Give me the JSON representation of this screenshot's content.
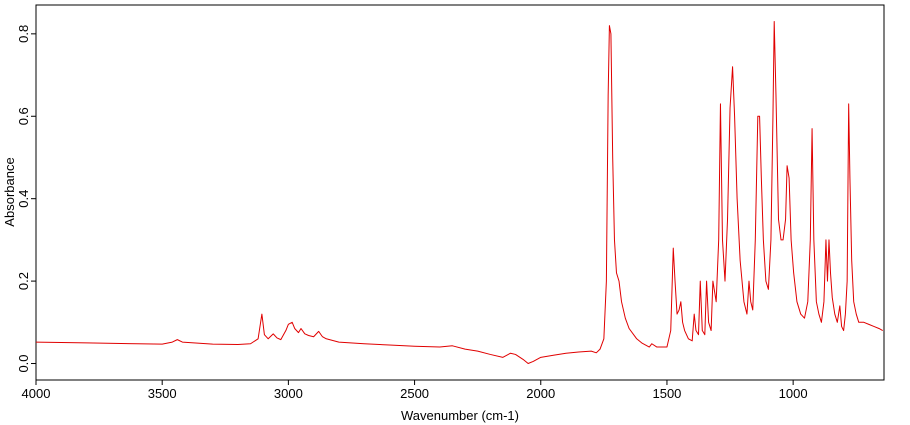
{
  "chart_data": {
    "type": "line",
    "xlabel": "Wavenumber (cm-1)",
    "ylabel": "Absorbance",
    "color": "#e00000",
    "xlim": [
      4000,
      640
    ],
    "xticks": [
      4000,
      3500,
      3000,
      2500,
      2000,
      1500,
      1000
    ],
    "ylim": [
      -0.04,
      0.87
    ],
    "yticks": [
      {
        "value": 0,
        "label": "0.0"
      },
      0.2,
      0.4,
      0.6,
      0.8
    ],
    "x": [
      4000,
      3800,
      3600,
      3500,
      3460,
      3440,
      3420,
      3300,
      3200,
      3150,
      3120,
      3105,
      3095,
      3080,
      3060,
      3045,
      3030,
      3010,
      3000,
      2985,
      2975,
      2960,
      2950,
      2935,
      2920,
      2900,
      2880,
      2865,
      2850,
      2800,
      2700,
      2600,
      2500,
      2400,
      2350,
      2300,
      2250,
      2200,
      2150,
      2120,
      2100,
      2070,
      2050,
      2030,
      2000,
      1950,
      1900,
      1850,
      1800,
      1780,
      1765,
      1750,
      1740,
      1733,
      1728,
      1722,
      1715,
      1708,
      1700,
      1690,
      1680,
      1665,
      1650,
      1620,
      1600,
      1570,
      1560,
      1540,
      1500,
      1485,
      1475,
      1468,
      1460,
      1452,
      1445,
      1438,
      1430,
      1415,
      1400,
      1392,
      1385,
      1375,
      1368,
      1360,
      1350,
      1343,
      1335,
      1325,
      1318,
      1305,
      1295,
      1288,
      1280,
      1270,
      1260,
      1250,
      1240,
      1232,
      1222,
      1210,
      1195,
      1183,
      1175,
      1168,
      1160,
      1150,
      1140,
      1133,
      1126,
      1118,
      1108,
      1098,
      1088,
      1080,
      1075,
      1068,
      1058,
      1048,
      1040,
      1030,
      1024,
      1016,
      1008,
      998,
      985,
      970,
      955,
      942,
      932,
      925,
      918,
      908,
      898,
      888,
      878,
      870,
      864,
      858,
      852,
      845,
      835,
      825,
      815,
      808,
      800,
      793,
      786,
      780,
      775,
      768,
      760,
      750,
      740,
      720,
      700,
      680,
      660,
      645
    ],
    "values": [
      0.052,
      0.05,
      0.048,
      0.047,
      0.052,
      0.058,
      0.052,
      0.047,
      0.046,
      0.048,
      0.06,
      0.12,
      0.07,
      0.06,
      0.072,
      0.062,
      0.058,
      0.08,
      0.095,
      0.1,
      0.085,
      0.075,
      0.085,
      0.072,
      0.068,
      0.065,
      0.078,
      0.065,
      0.06,
      0.052,
      0.048,
      0.045,
      0.042,
      0.04,
      0.043,
      0.035,
      0.03,
      0.022,
      0.015,
      0.025,
      0.022,
      0.01,
      0.0,
      0.005,
      0.015,
      0.02,
      0.025,
      0.028,
      0.03,
      0.026,
      0.035,
      0.06,
      0.2,
      0.65,
      0.82,
      0.8,
      0.5,
      0.3,
      0.22,
      0.2,
      0.15,
      0.11,
      0.085,
      0.06,
      0.05,
      0.04,
      0.048,
      0.04,
      0.04,
      0.08,
      0.28,
      0.2,
      0.12,
      0.13,
      0.15,
      0.1,
      0.08,
      0.06,
      0.055,
      0.12,
      0.08,
      0.07,
      0.2,
      0.08,
      0.07,
      0.2,
      0.1,
      0.08,
      0.2,
      0.15,
      0.3,
      0.63,
      0.3,
      0.2,
      0.35,
      0.62,
      0.72,
      0.6,
      0.4,
      0.25,
      0.15,
      0.12,
      0.2,
      0.15,
      0.13,
      0.3,
      0.6,
      0.6,
      0.45,
      0.3,
      0.2,
      0.18,
      0.3,
      0.6,
      0.83,
      0.65,
      0.35,
      0.3,
      0.3,
      0.35,
      0.48,
      0.45,
      0.3,
      0.22,
      0.15,
      0.12,
      0.11,
      0.15,
      0.3,
      0.57,
      0.3,
      0.15,
      0.12,
      0.1,
      0.15,
      0.3,
      0.2,
      0.3,
      0.22,
      0.16,
      0.12,
      0.1,
      0.14,
      0.09,
      0.08,
      0.12,
      0.2,
      0.63,
      0.45,
      0.25,
      0.15,
      0.12,
      0.1,
      0.1,
      0.095,
      0.09,
      0.085,
      0.08
    ]
  }
}
